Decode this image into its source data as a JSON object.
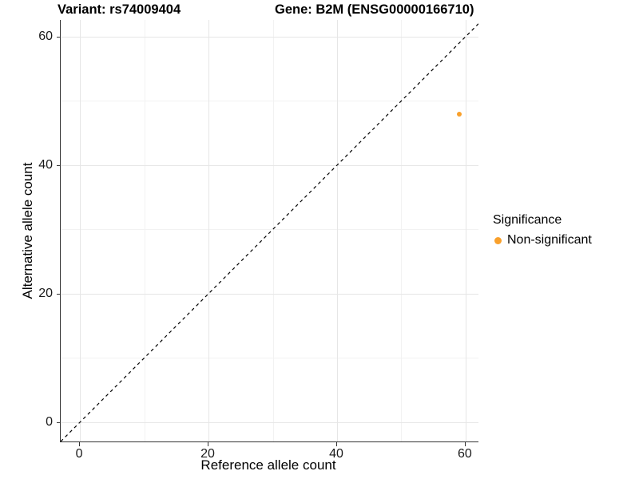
{
  "chart_data": {
    "type": "scatter",
    "titles": {
      "variant": "Variant: rs74009404",
      "gene": "Gene: B2M (ENSG00000166710)"
    },
    "xlabel": "Reference allele count",
    "ylabel": "Alternative allele count",
    "xlim": [
      -3,
      62
    ],
    "ylim": [
      -3,
      62.6
    ],
    "x_ticks": [
      0,
      20,
      40,
      60
    ],
    "y_ticks": [
      0,
      20,
      40,
      60
    ],
    "x_minor_ticks": [
      10,
      30,
      50
    ],
    "y_minor_ticks": [
      10,
      30,
      50
    ],
    "grid": "major+minor on white panel",
    "identity_line": {
      "slope": 1,
      "intercept": 0,
      "style": "dashed",
      "color": "#000000"
    },
    "series": [
      {
        "name": "Non-significant",
        "color": "#F9A02B",
        "points": [
          {
            "x": 59,
            "y": 48
          }
        ]
      }
    ],
    "legend": {
      "title": "Significance",
      "position": "right",
      "entries": [
        {
          "label": "Non-significant",
          "color": "#F9A02B"
        }
      ]
    }
  }
}
